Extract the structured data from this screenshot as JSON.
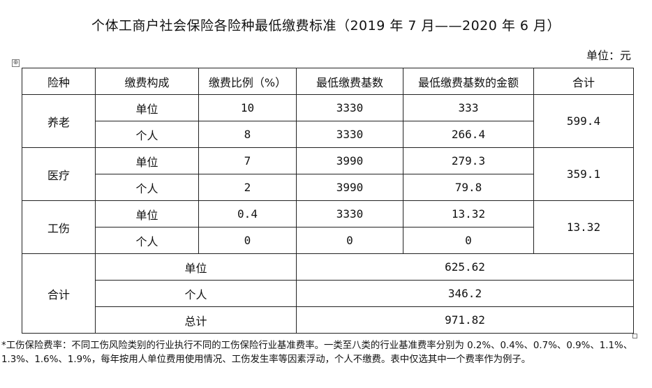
{
  "title": "个体工商户社会保险各险种最低缴费标准（2019 年 7 月——2020 年 6 月）",
  "unit_label": "单位：元",
  "anchor_glyph": "⊕",
  "table": {
    "headers": [
      "险种",
      "缴费构成",
      "缴费比例（%）",
      "最低缴费基数",
      "最低缴费基数的金额",
      "合计"
    ],
    "groups": [
      {
        "type": "养老",
        "total": "599.4",
        "rows": [
          {
            "component": "单位",
            "rate": "10",
            "base": "3330",
            "amount": "333"
          },
          {
            "component": "个人",
            "rate": "8",
            "base": "3330",
            "amount": "266.4"
          }
        ]
      },
      {
        "type": "医疗",
        "total": "359.1",
        "rows": [
          {
            "component": "单位",
            "rate": "7",
            "base": "3990",
            "amount": "279.3"
          },
          {
            "component": "个人",
            "rate": "2",
            "base": "3990",
            "amount": "79.8"
          }
        ]
      },
      {
        "type": "工伤",
        "total": "13.32",
        "rows": [
          {
            "component": "单位",
            "rate": "0.4",
            "base": "3330",
            "amount": "13.32"
          },
          {
            "component": "个人",
            "rate": "0",
            "base": "0",
            "amount": "0"
          }
        ]
      }
    ],
    "summary": {
      "label": "合计",
      "rows": [
        {
          "label": "单位",
          "value": "625.62"
        },
        {
          "label": "个人",
          "value": "346.2"
        },
        {
          "label": "总计",
          "value": "971.82"
        }
      ]
    }
  },
  "footnote": "*工伤保险费率：不同工伤风险类别的行业执行不同的工伤保险行业基准费率。一类至八类的行业基准费率分别为 0.2%、0.4%、0.7%、0.9%、1.1%、1.3%、1.6%、1.9%，每年按用人单位费用使用情况、工伤发生率等因素浮动，个人不缴费。表中仅选其中一个费率作为例子。"
}
